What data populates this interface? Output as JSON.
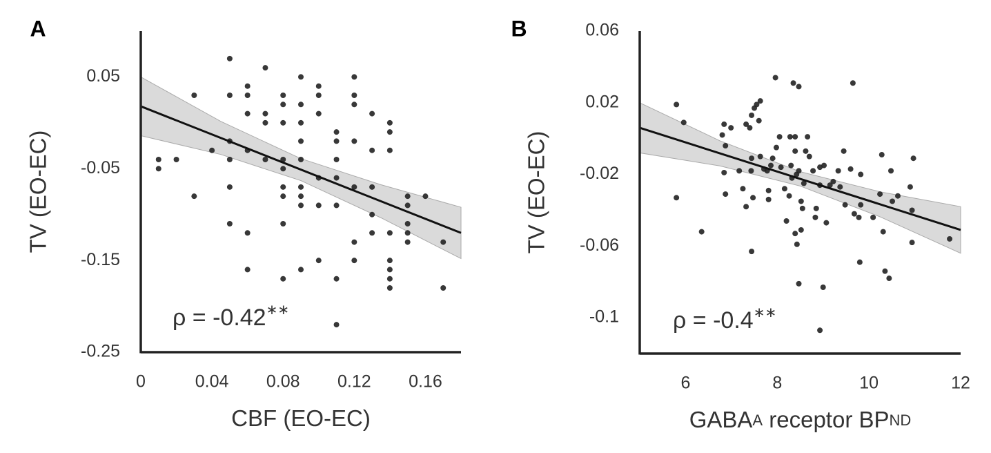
{
  "chart_data": [
    {
      "type": "scatter",
      "panel": "A",
      "xlabel": {
        "text": "CBF (EO-EC)"
      },
      "ylabel": "TV (EO-EC)",
      "annotation": {
        "text": "ρ = -0.42",
        "sup": "∗∗"
      },
      "xlim": [
        0,
        0.18
      ],
      "ylim": [
        -0.25,
        0.1
      ],
      "xticks": [
        0,
        0.04,
        0.08,
        0.12,
        0.16
      ],
      "yticks": [
        0.05,
        -0.05,
        -0.15,
        -0.25
      ],
      "color": "#222222",
      "x": [
        0.01,
        0.01,
        0.02,
        0.03,
        0.03,
        0.04,
        0.05,
        0.05,
        0.05,
        0.05,
        0.05,
        0.05,
        0.06,
        0.06,
        0.06,
        0.06,
        0.06,
        0.06,
        0.07,
        0.07,
        0.07,
        0.07,
        0.08,
        0.08,
        0.08,
        0.08,
        0.08,
        0.08,
        0.08,
        0.08,
        0.08,
        0.09,
        0.09,
        0.09,
        0.09,
        0.09,
        0.09,
        0.09,
        0.09,
        0.09,
        0.1,
        0.1,
        0.1,
        0.1,
        0.1,
        0.1,
        0.11,
        0.11,
        0.11,
        0.11,
        0.11,
        0.11,
        0.11,
        0.12,
        0.12,
        0.12,
        0.12,
        0.12,
        0.12,
        0.12,
        0.13,
        0.13,
        0.13,
        0.13,
        0.13,
        0.14,
        0.14,
        0.14,
        0.14,
        0.14,
        0.14,
        0.14,
        0.14,
        0.15,
        0.15,
        0.15,
        0.15,
        0.15,
        0.16,
        0.17,
        0.17
      ],
      "y": [
        -0.04,
        -0.05,
        -0.04,
        0.03,
        -0.08,
        -0.03,
        0.07,
        0.03,
        -0.02,
        -0.04,
        -0.07,
        -0.11,
        0.04,
        0.03,
        0.01,
        -0.03,
        -0.12,
        -0.16,
        0.06,
        0.01,
        0,
        -0.04,
        0.03,
        0.02,
        0,
        -0.04,
        -0.05,
        -0.07,
        -0.08,
        -0.11,
        -0.17,
        0.05,
        0.02,
        0,
        -0.02,
        -0.04,
        -0.07,
        -0.08,
        -0.09,
        -0.16,
        0.04,
        0.03,
        0.01,
        -0.06,
        -0.09,
        -0.15,
        -0.01,
        -0.02,
        -0.04,
        -0.06,
        -0.09,
        -0.17,
        -0.22,
        0.05,
        0.03,
        0.02,
        -0.02,
        -0.07,
        -0.13,
        -0.15,
        0.01,
        -0.03,
        -0.07,
        -0.1,
        -0.12,
        0,
        -0.01,
        -0.03,
        -0.12,
        -0.15,
        -0.16,
        -0.17,
        -0.18,
        -0.08,
        -0.09,
        -0.11,
        -0.12,
        -0.13,
        -0.08,
        -0.13,
        -0.18
      ],
      "fit": {
        "x": [
          0,
          0.18
        ],
        "y": [
          0.018,
          -0.12
        ]
      },
      "ci": {
        "x": [
          0,
          0.045,
          0.09,
          0.135,
          0.18
        ],
        "upper": [
          0.05,
          0.0015,
          -0.039,
          -0.0675,
          -0.092
        ],
        "lower": [
          -0.014,
          -0.0345,
          -0.063,
          -0.1035,
          -0.148
        ]
      }
    },
    {
      "type": "scatter",
      "panel": "B",
      "xlabel": {
        "text": "GABA",
        "sub": "A",
        "text2": " receptor BP",
        "sub2": "ND"
      },
      "ylabel": "TV (EO-EC)",
      "annotation": {
        "text": "ρ = -0.4",
        "sup": "∗∗"
      },
      "xlim": [
        5,
        12
      ],
      "ylim": [
        -0.12,
        0.06
      ],
      "xticks": [
        6,
        8,
        10,
        12
      ],
      "yticks": [
        0.06,
        0.02,
        -0.02,
        -0.06,
        -0.1
      ],
      "color": "#222222",
      "x": [
        5.8,
        5.96,
        5.8,
        6.35,
        6.84,
        6.87,
        6.84,
        6.87,
        6.99,
        6.8,
        7.17,
        7.25,
        7.32,
        7.4,
        7.44,
        7.5,
        7.55,
        7.63,
        7.6,
        7.44,
        7.43,
        7.47,
        7.32,
        7.44,
        7.63,
        7.71,
        7.78,
        7.81,
        7.81,
        7.86,
        7.9,
        7.96,
        7.98,
        8.05,
        8.08,
        8.16,
        8.2,
        8.26,
        8.28,
        8.3,
        8.32,
        8.35,
        8.39,
        8.39,
        8.42,
        8.43,
        8.47,
        8.47,
        8.39,
        8.47,
        8.52,
        8.55,
        8.52,
        8.58,
        8.62,
        8.66,
        8.7,
        8.78,
        8.83,
        8.85,
        8.93,
        8.93,
        8.93,
        9.0,
        9.02,
        9.07,
        9.15,
        9.22,
        9.33,
        9.37,
        9.45,
        9.48,
        9.6,
        9.65,
        9.68,
        9.78,
        9.8,
        9.82,
        9.82,
        10.09,
        10.24,
        10.28,
        10.31,
        10.35,
        10.44,
        10.48,
        10.51,
        10.63,
        10.9,
        10.94,
        10.94,
        10.97,
        11.76
      ],
      "y": [
        0.019,
        0.009,
        -0.033,
        -0.052,
        0.008,
        -0.004,
        -0.019,
        -0.031,
        0.006,
        0.002,
        -0.018,
        -0.028,
        0.008,
        0.006,
        0.013,
        0.017,
        0.019,
        0.021,
        0.01,
        -0.011,
        -0.018,
        -0.033,
        -0.038,
        -0.063,
        -0.01,
        -0.017,
        -0.018,
        -0.029,
        -0.034,
        -0.015,
        -0.011,
        0.034,
        -0.005,
        0.001,
        -0.016,
        -0.028,
        -0.046,
        -0.032,
        0.001,
        -0.015,
        -0.022,
        0.031,
        0.001,
        -0.053,
        -0.02,
        -0.059,
        0.029,
        -0.081,
        -0.007,
        -0.018,
        -0.035,
        -0.039,
        -0.051,
        -0.025,
        -0.007,
        0.001,
        -0.01,
        -0.018,
        -0.044,
        -0.039,
        -0.016,
        -0.026,
        -0.107,
        -0.083,
        -0.015,
        -0.047,
        -0.026,
        -0.024,
        -0.018,
        -0.027,
        -0.007,
        -0.037,
        -0.017,
        0.031,
        -0.042,
        -0.044,
        -0.069,
        -0.02,
        -0.037,
        -0.044,
        -0.031,
        -0.009,
        -0.052,
        -0.074,
        -0.078,
        -0.018,
        -0.035,
        -0.032,
        -0.027,
        -0.04,
        -0.058,
        -0.011,
        -0.056
      ],
      "fit": {
        "x": [
          5,
          12
        ],
        "y": [
          0.006,
          -0.051
        ]
      },
      "ci": {
        "x": [
          5,
          6.75,
          8.5,
          10.25,
          12
        ],
        "upper": [
          0.02,
          -0.00125,
          -0.0185,
          -0.02975,
          -0.038
        ],
        "lower": [
          -0.008,
          -0.01525,
          -0.0265,
          -0.04375,
          -0.064
        ]
      }
    }
  ]
}
